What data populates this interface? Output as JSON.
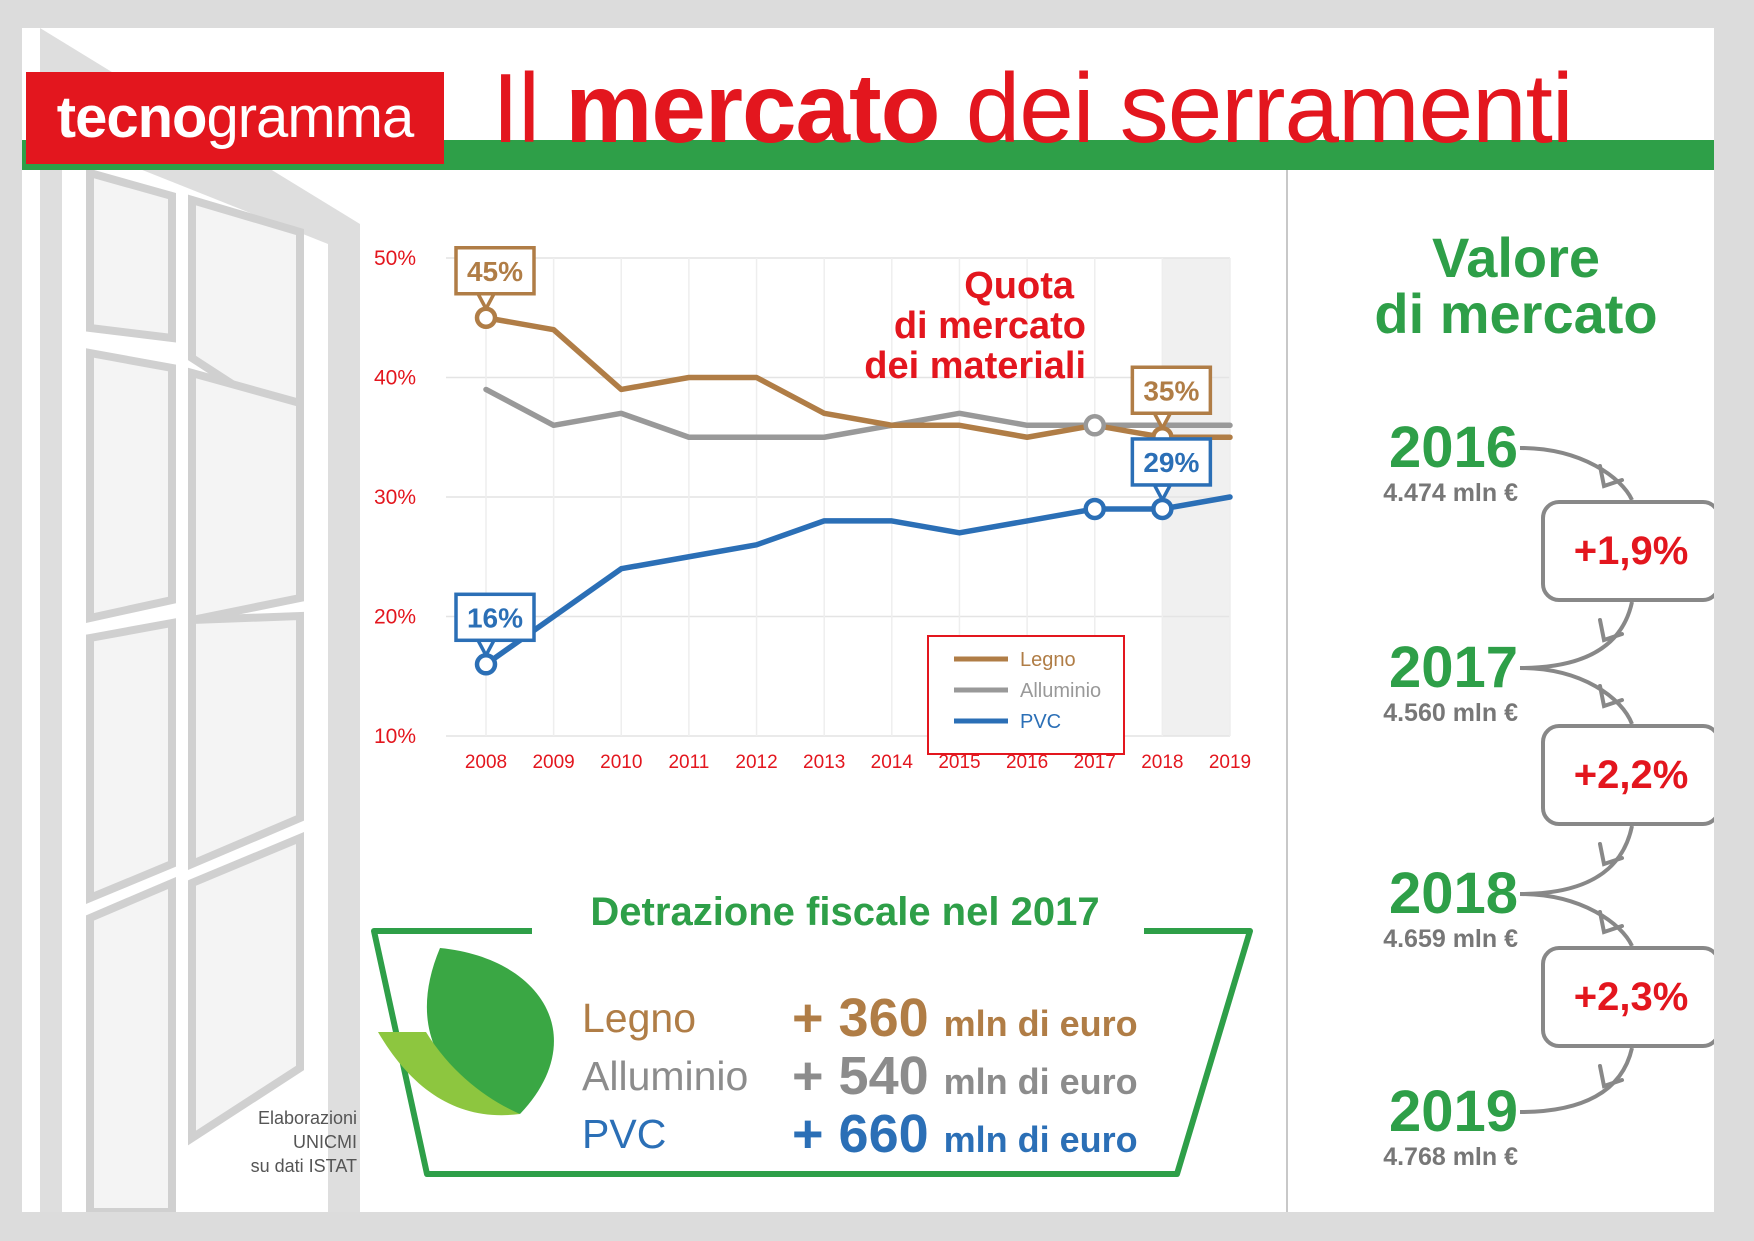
{
  "brand": {
    "bold": "tecno",
    "light": "gramma"
  },
  "headline": {
    "pre": "Il",
    "bold": "mercato",
    "post": "dei serramenti"
  },
  "chart_data": {
    "type": "line",
    "title_lines": [
      "Quota",
      "di mercato",
      "dei materiali"
    ],
    "x": [
      "2008",
      "2009",
      "2010",
      "2011",
      "2012",
      "2013",
      "2014",
      "2015",
      "2016",
      "2017",
      "2018",
      "2019"
    ],
    "y_ticks": [
      "50%",
      "40%",
      "30%",
      "20%",
      "10%"
    ],
    "ylim": [
      10,
      50
    ],
    "grid": true,
    "highlight_from": "2018",
    "legend_position": "lower-right",
    "series": [
      {
        "name": "Legno",
        "color": "#b07d46",
        "values": [
          45,
          44,
          39,
          40,
          40,
          37,
          36,
          36,
          35,
          36,
          35,
          35
        ]
      },
      {
        "name": "Alluminio",
        "color": "#999999",
        "values": [
          39,
          36,
          37,
          35,
          35,
          35,
          36,
          37,
          36,
          36,
          36,
          36
        ]
      },
      {
        "name": "PVC",
        "color": "#2b6fb6",
        "values": [
          16,
          20,
          24,
          25,
          26,
          28,
          28,
          27,
          28,
          29,
          29,
          30
        ]
      }
    ],
    "annotations": [
      {
        "series": "Legno",
        "x": "2008",
        "text": "45%"
      },
      {
        "series": "Legno",
        "x": "2018",
        "text": "35%"
      },
      {
        "series": "PVC",
        "x": "2008",
        "text": "16%"
      },
      {
        "series": "PVC",
        "x": "2018",
        "text": "29%"
      }
    ],
    "extra_markers": [
      {
        "series": "Alluminio",
        "x": "2017"
      },
      {
        "series": "PVC",
        "x": "2017"
      }
    ]
  },
  "tax": {
    "title": "Detrazione fiscale nel 2017",
    "rows": [
      {
        "material": "Legno",
        "amount": "+ 360",
        "unit": "mln di euro",
        "color": "#b07d46"
      },
      {
        "material": "Alluminio",
        "amount": "+ 540",
        "unit": "mln di euro",
        "color": "#8c8c8c"
      },
      {
        "material": "PVC",
        "amount": "+ 660",
        "unit": "mln di euro",
        "color": "#2b6fb6"
      }
    ]
  },
  "credit": [
    "Elaborazioni",
    "UNICMI",
    "su dati ISTAT"
  ],
  "market": {
    "title_lines": [
      "Valore",
      "di mercato"
    ],
    "years": [
      {
        "year": "2016",
        "value": "4.474 mln €"
      },
      {
        "year": "2017",
        "value": "4.560 mln €"
      },
      {
        "year": "2018",
        "value": "4.659 mln €"
      },
      {
        "year": "2019",
        "value": "4.768 mln €"
      }
    ],
    "changes": [
      "+1,9%",
      "+2,2%",
      "+2,3%"
    ]
  },
  "colors": {
    "red": "#e3161e",
    "green": "#2e9f48",
    "wood": "#b07d46",
    "alu": "#999999",
    "pvc": "#2b6fb6"
  }
}
